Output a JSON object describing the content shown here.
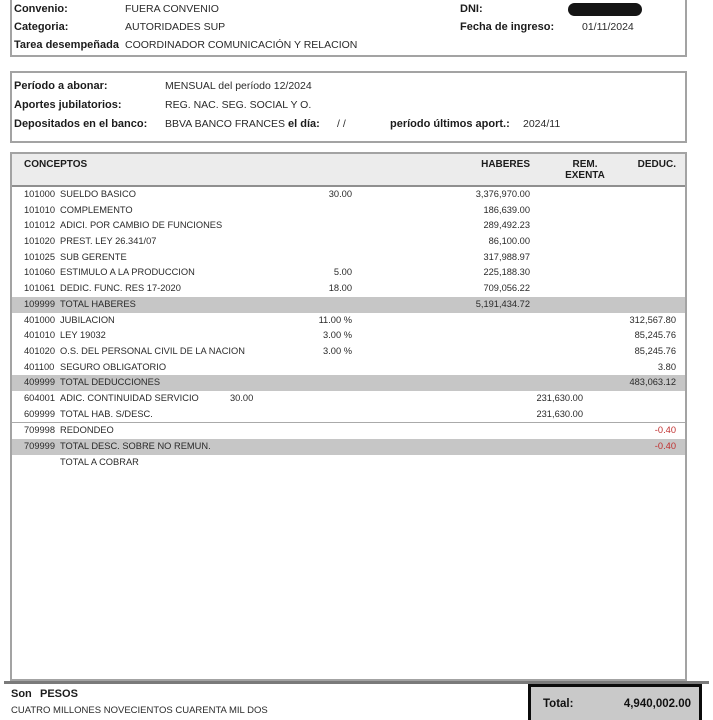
{
  "colors": {
    "negative": "#c03030",
    "total_row_bg": "#c6c6c6",
    "header_band_bg": "#ececec",
    "total_box_bg": "#c9c9c9"
  },
  "employee": {
    "convenio_label": "Convenio:",
    "convenio_value": "FUERA CONVENIO",
    "categoria_label": "Categoria:",
    "categoria_value": "AUTORIDADES SUP",
    "tarea_label": "Tarea desempeñada",
    "tarea_value": "COORDINADOR COMUNICACIÓN Y RELACION",
    "dni_label": "DNI:",
    "fecha_ingreso_label": "Fecha de ingreso:",
    "fecha_ingreso_value": "01/11/2024"
  },
  "period": {
    "periodo_label": "Período a abonar:",
    "periodo_value": "MENSUAL del período 12/2024",
    "aportes_label": "Aportes jubilatorios:",
    "aportes_value": "REG. NAC. SEG. SOCIAL Y O.",
    "banco_label": "Depositados en el banco:",
    "banco_value": "BBVA BANCO FRANCES",
    "el_dia_label": "el día:",
    "el_dia_value": "/ /",
    "ultimos_aport_label": "período últimos aport.:",
    "ultimos_aport_value": "2024/11"
  },
  "table": {
    "header": {
      "conceptos": "CONCEPTOS",
      "haberes": "HABERES",
      "rem_line1": "REM.",
      "rem_line2": "EXENTA",
      "deduc": "DEDUC."
    },
    "rows": [
      {
        "code": "101000",
        "concept": "SUELDO BASICO",
        "qty": "30.00",
        "haberes": "3,376,970.00"
      },
      {
        "code": "101010",
        "concept": "COMPLEMENTO",
        "haberes": "186,639.00"
      },
      {
        "code": "101012",
        "concept": "ADICI. POR CAMBIO DE FUNCIONES",
        "haberes": "289,492.23"
      },
      {
        "code": "101020",
        "concept": "PREST. LEY 26.341/07",
        "haberes": "86,100.00"
      },
      {
        "code": "101025",
        "concept": "SUB GERENTE",
        "haberes": "317,988.97"
      },
      {
        "code": "101060",
        "concept": "ESTIMULO A LA PRODUCCION",
        "qty": "5.00",
        "haberes": "225,188.30"
      },
      {
        "code": "101061",
        "concept": "DEDIC. FUNC. RES 17-2020",
        "qty": "18.00",
        "haberes": "709,056.22"
      },
      {
        "code": "109999",
        "concept": "TOTAL HABERES",
        "haberes": "5,191,434.72",
        "gray": true
      },
      {
        "code": "401000",
        "concept": "JUBILACION",
        "qty": "11.00 %",
        "deduc": "312,567.80"
      },
      {
        "code": "401010",
        "concept": "LEY 19032",
        "qty": "3.00 %",
        "deduc": "85,245.76"
      },
      {
        "code": "401020",
        "concept": "O.S. DEL PERSONAL CIVIL DE LA NACION",
        "qty": "3.00 %",
        "deduc": "85,245.76"
      },
      {
        "code": "401100",
        "concept": "SEGURO OBLIGATORIO",
        "deduc": "3.80"
      },
      {
        "code": "409999",
        "concept": "TOTAL DEDUCCIONES",
        "deduc": "483,063.12",
        "gray": true
      },
      {
        "code": "604001",
        "concept": "ADIC. CONTINUIDAD SERVICIO",
        "qty_inline": "30.00",
        "rem": "231,630.00"
      },
      {
        "code": "609999",
        "concept": "TOTAL HAB. S/DESC.",
        "rem": "231,630.00"
      },
      {
        "code": "709998",
        "concept": "REDONDEO",
        "deduc": "-0.40",
        "neg": true,
        "topline": true
      },
      {
        "code": "709999",
        "concept": "TOTAL DESC. SOBRE NO REMUN.",
        "deduc": "-0.40",
        "neg": true,
        "gray": true
      },
      {
        "code": "",
        "concept": "TOTAL A COBRAR"
      }
    ]
  },
  "footer": {
    "son_label": "Son",
    "currency": "PESOS",
    "amount_words": "CUATRO MILLONES NOVECIENTOS CUARENTA MIL DOS",
    "total_label": "Total:",
    "total_value": "4,940,002.00"
  }
}
